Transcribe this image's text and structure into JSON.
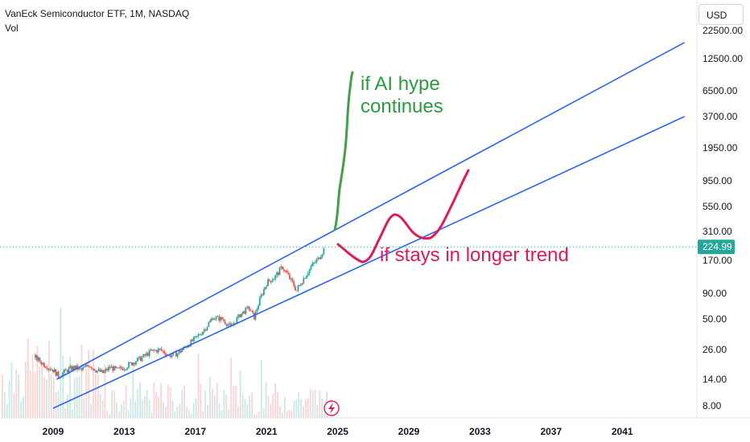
{
  "header": {
    "title": "VanEck Semiconductor ETF, 1M, NASDAQ",
    "volume_label": "Vol"
  },
  "currency_button": {
    "label": "USD"
  },
  "chart_data": {
    "type": "candlestick",
    "scale": "log",
    "y_ticks": [
      "22500.00",
      "12500.00",
      "6500.00",
      "3700.00",
      "1950.00",
      "950.00",
      "550.00",
      "310.00",
      "170.00",
      "90.00",
      "50.00",
      "26.00",
      "14.00",
      "8.00"
    ],
    "x_ticks": [
      "2009",
      "2013",
      "2017",
      "2021",
      "2025",
      "2029",
      "2033",
      "2037",
      "2041"
    ],
    "last_price": "224.99",
    "price_series": [
      {
        "x": 2008.0,
        "y": 22
      },
      {
        "x": 2008.5,
        "y": 19
      },
      {
        "x": 2009.0,
        "y": 17
      },
      {
        "x": 2009.3,
        "y": 15
      },
      {
        "x": 2009.8,
        "y": 17
      },
      {
        "x": 2010.2,
        "y": 18
      },
      {
        "x": 2010.6,
        "y": 17
      },
      {
        "x": 2011.0,
        "y": 19
      },
      {
        "x": 2011.4,
        "y": 17
      },
      {
        "x": 2011.8,
        "y": 16
      },
      {
        "x": 2012.2,
        "y": 18
      },
      {
        "x": 2012.6,
        "y": 17
      },
      {
        "x": 2013.0,
        "y": 18
      },
      {
        "x": 2013.5,
        "y": 20
      },
      {
        "x": 2014.0,
        "y": 22
      },
      {
        "x": 2014.5,
        "y": 25
      },
      {
        "x": 2015.0,
        "y": 26
      },
      {
        "x": 2015.5,
        "y": 23
      },
      {
        "x": 2016.0,
        "y": 24
      },
      {
        "x": 2016.5,
        "y": 28
      },
      {
        "x": 2017.0,
        "y": 33
      },
      {
        "x": 2017.5,
        "y": 40
      },
      {
        "x": 2018.0,
        "y": 52
      },
      {
        "x": 2018.5,
        "y": 50
      },
      {
        "x": 2019.0,
        "y": 42
      },
      {
        "x": 2019.5,
        "y": 55
      },
      {
        "x": 2020.0,
        "y": 65
      },
      {
        "x": 2020.3,
        "y": 52
      },
      {
        "x": 2020.7,
        "y": 85
      },
      {
        "x": 2021.0,
        "y": 110
      },
      {
        "x": 2021.5,
        "y": 125
      },
      {
        "x": 2021.9,
        "y": 150
      },
      {
        "x": 2022.3,
        "y": 120
      },
      {
        "x": 2022.7,
        "y": 95
      },
      {
        "x": 2023.0,
        "y": 115
      },
      {
        "x": 2023.5,
        "y": 150
      },
      {
        "x": 2023.9,
        "y": 175
      },
      {
        "x": 2024.3,
        "y": 224.99
      }
    ],
    "volume_bars": 140,
    "channel_lines": [
      {
        "from": {
          "x": 2009.2,
          "y": 14
        },
        "to": {
          "x": 2044.5,
          "y": 17500
        }
      },
      {
        "from": {
          "x": 2009.0,
          "y": 7.6
        },
        "to": {
          "x": 2044.5,
          "y": 3700
        }
      }
    ],
    "annotations": [
      {
        "text_lines": [
          "if AI hype",
          "continues"
        ],
        "color": "#2e9a3e"
      },
      {
        "text_lines": [
          "if stays in longer trend"
        ],
        "color": "#e0195a"
      }
    ],
    "colors": {
      "up": "#26a69a",
      "down": "#ef5350",
      "channel": "#2962ff",
      "green_path": "#43a047",
      "red_path": "#e0195a",
      "price_tag": "#26a69a"
    }
  }
}
